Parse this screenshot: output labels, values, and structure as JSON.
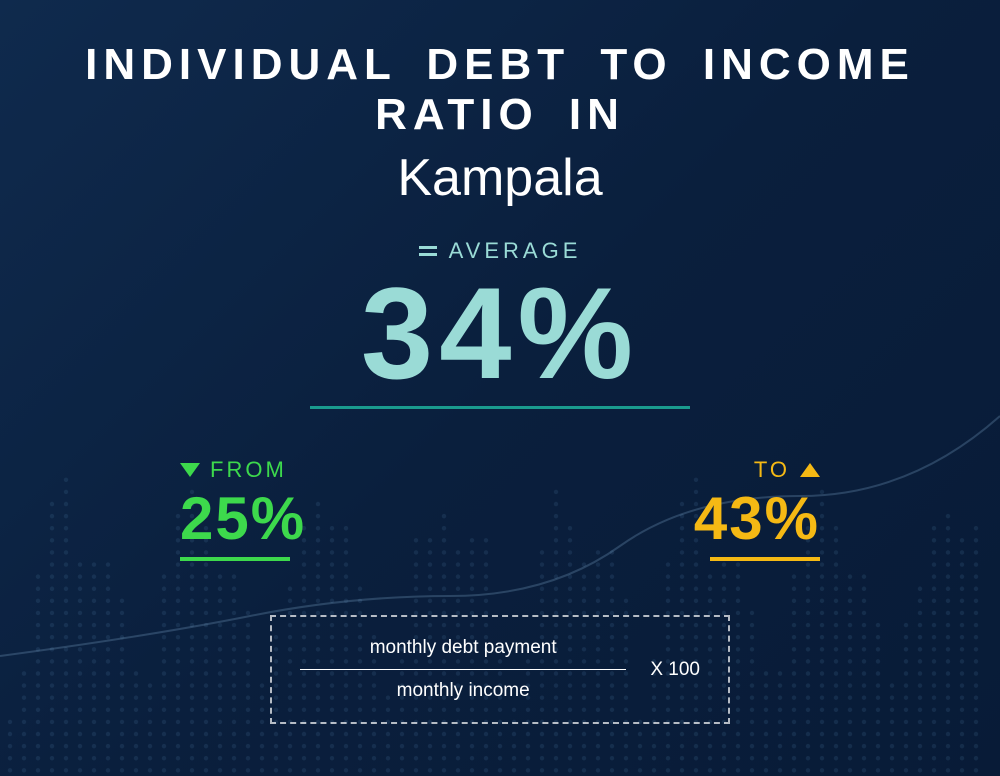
{
  "title": {
    "main": "INDIVIDUAL  DEBT  TO  INCOME RATIO  IN",
    "city": "Kampala"
  },
  "average": {
    "label": "AVERAGE",
    "value": "34%",
    "color": "#9adbd6",
    "label_color": "#9adbd6",
    "underline_color": "#1a9b8e",
    "value_fontsize": 130
  },
  "range": {
    "from": {
      "label": "FROM",
      "value": "25%",
      "color": "#3dd94c",
      "direction": "down"
    },
    "to": {
      "label": "TO",
      "value": "43%",
      "color": "#f5b914",
      "direction": "up"
    }
  },
  "formula": {
    "numerator": "monthly debt payment",
    "denominator": "monthly income",
    "multiplier": "X 100",
    "text_color": "#ffffff",
    "border_style": "dashed"
  },
  "background": {
    "gradient_from": "#0f2a4d",
    "gradient_to": "#081b37",
    "dot_color": "#2a5a8a",
    "line_color": "#5a8db8"
  }
}
